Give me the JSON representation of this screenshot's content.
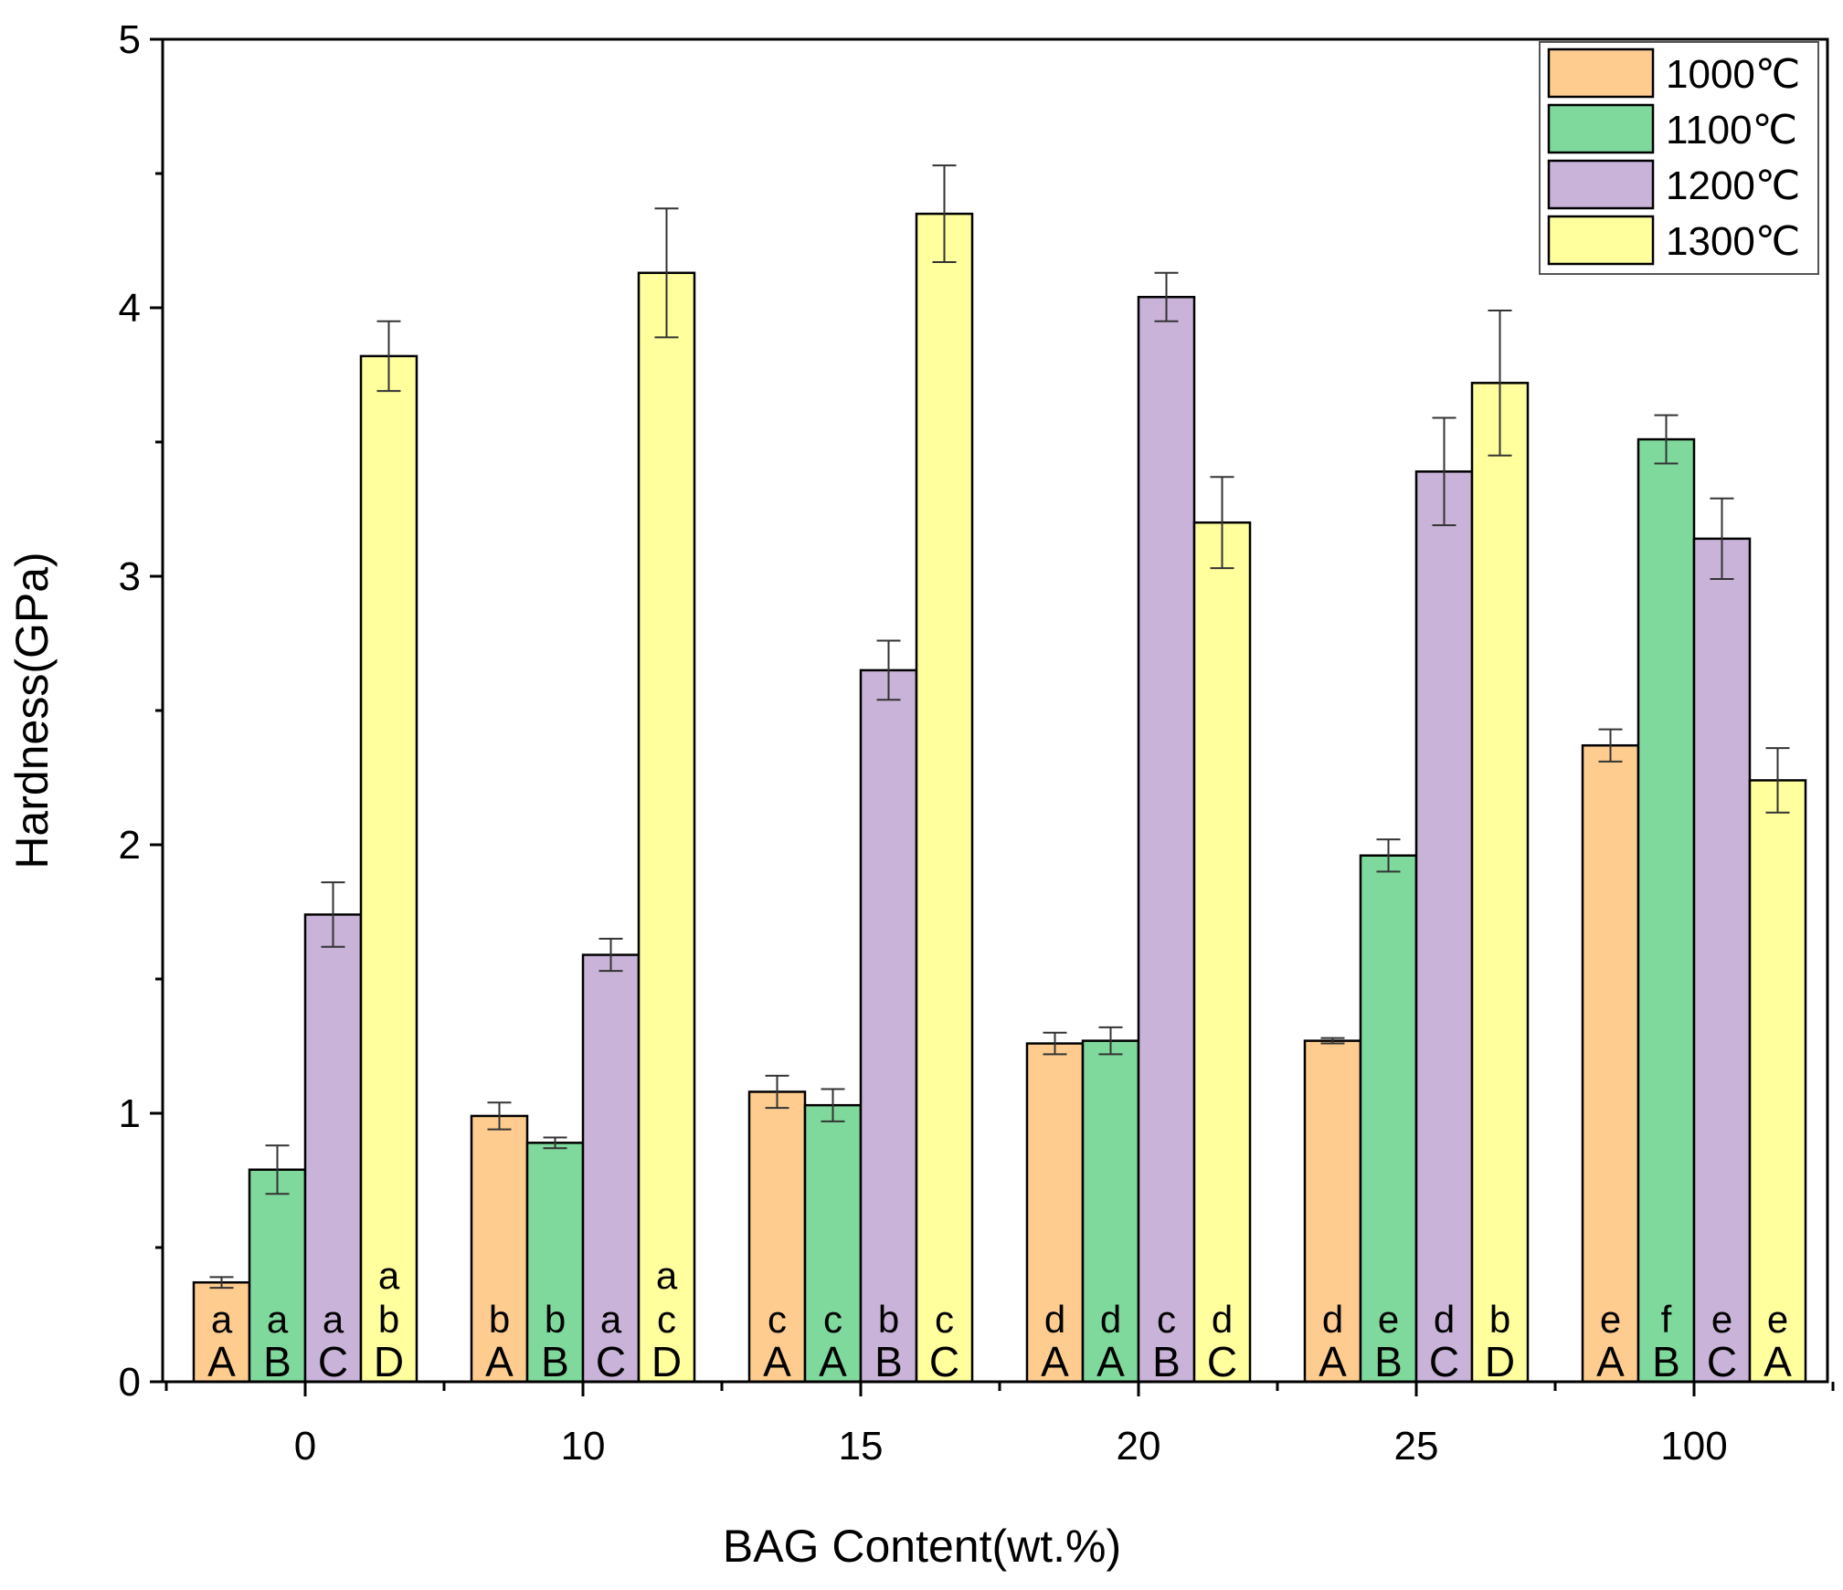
{
  "chart_data": {
    "type": "bar",
    "title": "",
    "xlabel": "BAG Content(wt.%)",
    "ylabel": "Hardness(GPa)",
    "ylim": [
      0,
      5
    ],
    "yticks": [
      "0",
      "1",
      "2",
      "3",
      "4",
      "5"
    ],
    "categories": [
      "0",
      "10",
      "15",
      "20",
      "25",
      "100"
    ],
    "legend_position": "top-right",
    "series": [
      {
        "name": "1000℃",
        "color": "#FFCC90",
        "values": [
          0.37,
          0.99,
          1.08,
          1.26,
          1.27,
          2.37
        ],
        "errors": [
          0.02,
          0.05,
          0.06,
          0.04,
          0.01,
          0.06
        ],
        "lower_labels": [
          "a",
          "b",
          "c",
          "d",
          "d",
          "e"
        ],
        "upper_labels": [
          "A",
          "A",
          "A",
          "A",
          "A",
          "A"
        ]
      },
      {
        "name": "1100℃",
        "color": "#7FD99C",
        "values": [
          0.79,
          0.89,
          1.03,
          1.27,
          1.96,
          3.51
        ],
        "errors": [
          0.09,
          0.02,
          0.06,
          0.05,
          0.06,
          0.09
        ],
        "lower_labels": [
          "a",
          "b",
          "c",
          "d",
          "e",
          "f"
        ],
        "upper_labels": [
          "B",
          "B",
          "A",
          "A",
          "B",
          "B"
        ]
      },
      {
        "name": "1200℃",
        "color": "#C9B3D9",
        "values": [
          1.74,
          1.59,
          2.65,
          4.04,
          3.39,
          3.14
        ],
        "errors": [
          0.12,
          0.06,
          0.11,
          0.09,
          0.2,
          0.15
        ],
        "lower_labels": [
          "a",
          "a",
          "b",
          "c",
          "d",
          "e"
        ],
        "upper_labels": [
          "C",
          "C",
          "B",
          "B",
          "C",
          "C"
        ]
      },
      {
        "name": "1300℃",
        "color": "#FFFF9E",
        "values": [
          3.82,
          4.13,
          4.35,
          3.2,
          3.72,
          2.24
        ],
        "errors": [
          0.13,
          0.24,
          0.18,
          0.17,
          0.27,
          0.12
        ],
        "lower_labels": [
          "a b",
          "a c",
          "c",
          "d",
          "b",
          "e"
        ],
        "upper_labels": [
          "D",
          "D",
          "C",
          "C",
          "D",
          "A"
        ]
      }
    ]
  }
}
